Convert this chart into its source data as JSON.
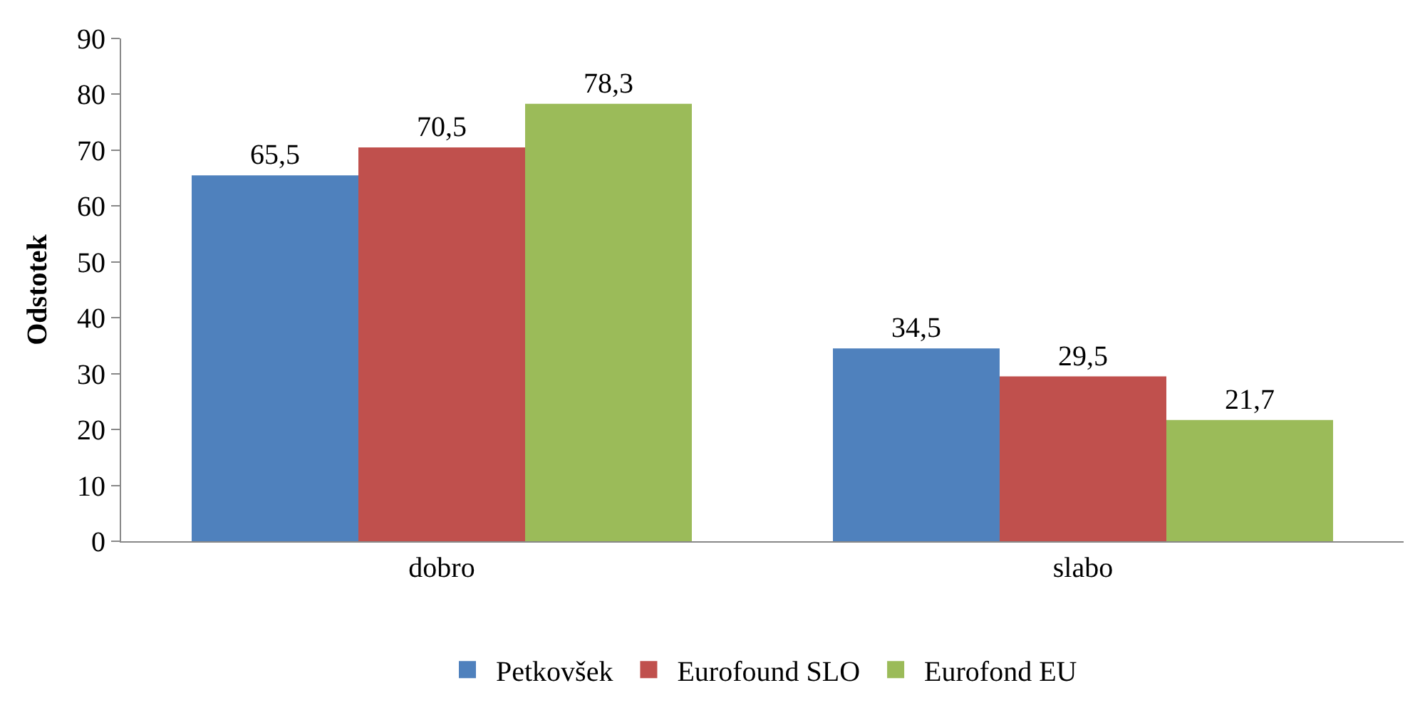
{
  "chart_data": {
    "type": "bar",
    "ylabel": "Odstotek",
    "categories": [
      "dobro",
      "slabo"
    ],
    "series": [
      {
        "name": "Petkovšek",
        "color": "#4f81bd",
        "values": [
          65.5,
          34.5
        ],
        "value_labels": [
          "65,5",
          "34,5"
        ]
      },
      {
        "name": "Eurofound SLO",
        "color": "#c0504d",
        "values": [
          70.5,
          29.5
        ],
        "value_labels": [
          "70,5",
          "29,5"
        ]
      },
      {
        "name": "Eurofond EU",
        "color": "#9bbb59",
        "values": [
          78.3,
          21.7
        ],
        "value_labels": [
          "78,3",
          "21,7"
        ]
      }
    ],
    "ylim": [
      0,
      90
    ],
    "yticks": [
      0,
      10,
      20,
      30,
      40,
      50,
      60,
      70,
      80,
      90
    ],
    "legend": "bottom"
  }
}
